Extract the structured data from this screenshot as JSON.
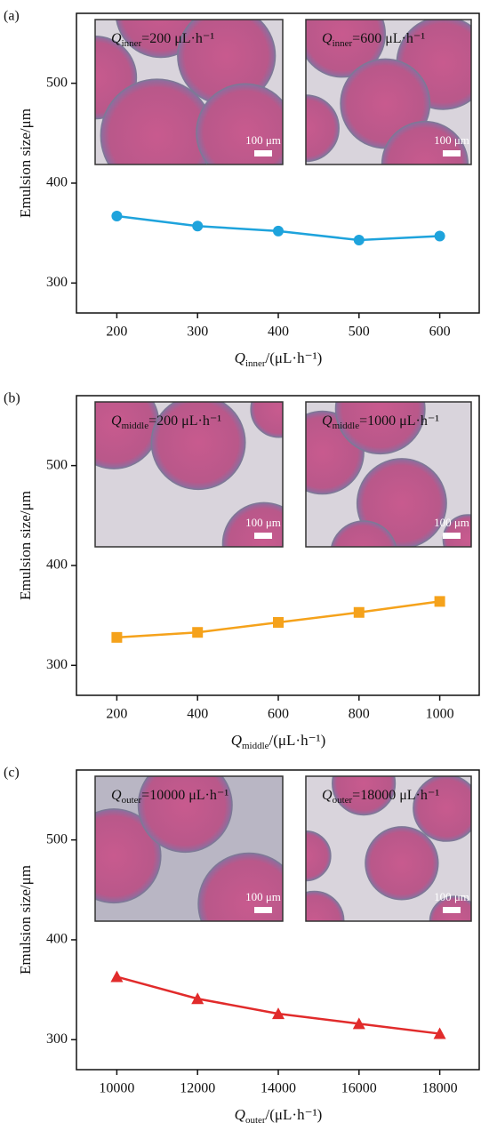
{
  "chart_data": [
    {
      "type": "line",
      "panel_label": "(a)",
      "ylabel": "Emulsion size/μm",
      "xlabel": {
        "symbol": "Q",
        "subscript": "inner",
        "text": "/(μL·h⁻¹)"
      },
      "x": [
        200,
        300,
        400,
        500,
        600
      ],
      "values": [
        367,
        357,
        352,
        343,
        347
      ],
      "color": "#1ea3dc",
      "marker": "circle",
      "xlim": [
        150,
        650
      ],
      "ylim": [
        270,
        570
      ],
      "xticks": [
        200,
        300,
        400,
        500,
        600
      ],
      "yticks": [
        300,
        400,
        500
      ],
      "insets": [
        {
          "label": {
            "symbol": "Q",
            "subscript": "inner",
            "text": "=200 μL·h⁻¹"
          },
          "scale_bar": "100 μm"
        },
        {
          "label": {
            "symbol": "Q",
            "subscript": "inner",
            "text": "=600 μL·h⁻¹"
          },
          "scale_bar": "100 μm"
        }
      ]
    },
    {
      "type": "line",
      "panel_label": "(b)",
      "ylabel": "Emulsion size/μm",
      "xlabel": {
        "symbol": "Q",
        "subscript": "middle",
        "text": "/(μL·h⁻¹)"
      },
      "x": [
        200,
        400,
        600,
        800,
        1000
      ],
      "values": [
        328,
        333,
        343,
        353,
        364
      ],
      "color": "#f5a21b",
      "marker": "square",
      "xlim": [
        100,
        1100
      ],
      "ylim": [
        270,
        570
      ],
      "xticks": [
        200,
        400,
        600,
        800,
        1000
      ],
      "yticks": [
        300,
        400,
        500
      ],
      "insets": [
        {
          "label": {
            "symbol": "Q",
            "subscript": "middle",
            "text": "=200 μL·h⁻¹"
          },
          "scale_bar": "100 μm"
        },
        {
          "label": {
            "symbol": "Q",
            "subscript": "middle",
            "text": "=1000 μL·h⁻¹"
          },
          "scale_bar": "100 μm"
        }
      ]
    },
    {
      "type": "line",
      "panel_label": "(c)",
      "ylabel": "Emulsion size/μm",
      "xlabel": {
        "symbol": "Q",
        "subscript": "outer",
        "text": "/(μL·h⁻¹)"
      },
      "x": [
        10000,
        12000,
        14000,
        16000,
        18000
      ],
      "values": [
        363,
        341,
        326,
        316,
        306
      ],
      "color": "#e12b2b",
      "marker": "triangle",
      "xlim": [
        9000,
        19000
      ],
      "ylim": [
        270,
        570
      ],
      "xticks": [
        10000,
        12000,
        14000,
        16000,
        18000
      ],
      "yticks": [
        300,
        400,
        500
      ],
      "insets": [
        {
          "label": {
            "symbol": "Q",
            "subscript": "outer",
            "text": "=10000 μL·h⁻¹"
          },
          "scale_bar": "100 μm"
        },
        {
          "label": {
            "symbol": "Q",
            "subscript": "outer",
            "text": "=18000 μL·h⁻¹"
          },
          "scale_bar": "100 μm"
        }
      ]
    }
  ]
}
